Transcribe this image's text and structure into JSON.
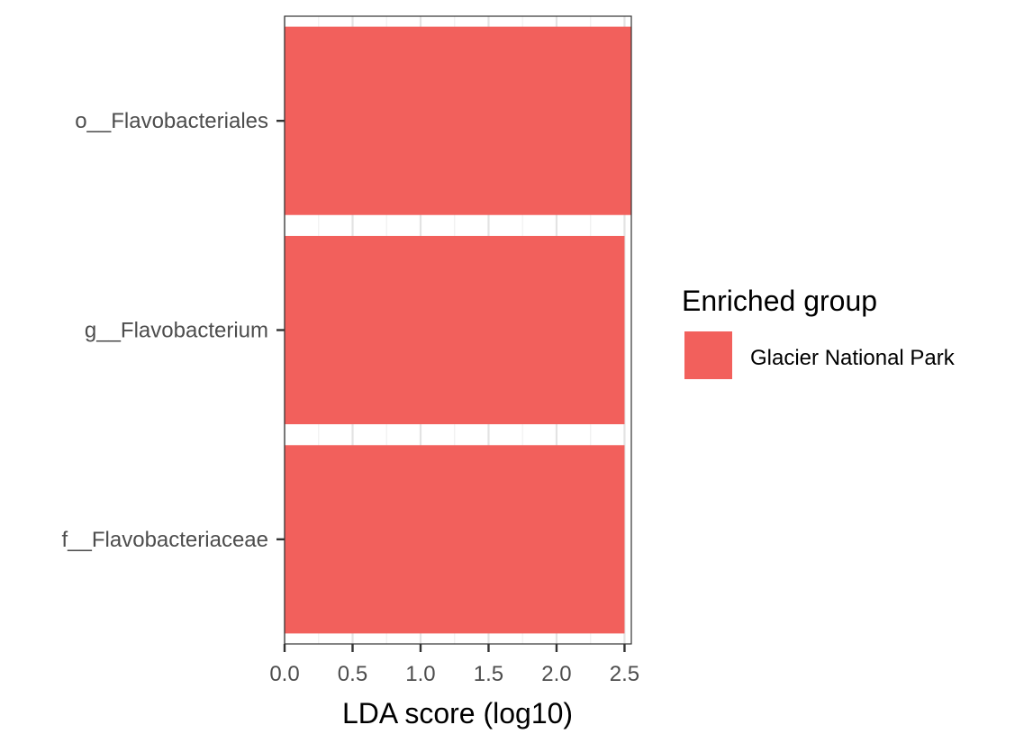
{
  "chart_data": {
    "type": "bar",
    "orientation": "horizontal",
    "categories": [
      "o__Flavobacteriales",
      "g__Flavobacterium",
      "f__Flavobacteriaceae"
    ],
    "series": [
      {
        "name": "Glacier National Park",
        "values": [
          2.55,
          2.5,
          2.5
        ]
      }
    ],
    "xlabel": "LDA score (log10)",
    "ylabel": "",
    "xlim": [
      0,
      2.55
    ],
    "xticks": [
      "0.0",
      "0.5",
      "1.0",
      "1.5",
      "2.0",
      "2.5"
    ],
    "grid": true,
    "legend": {
      "title": "Enriched group",
      "position": "right",
      "entries": [
        {
          "label": "Glacier National Park",
          "color": "#F2605C"
        }
      ]
    }
  },
  "colors": {
    "bar": "#F2605C",
    "grid_major": "#e3e3e3",
    "grid_minor": "#f1f1f1",
    "panel_border": "#333333"
  }
}
